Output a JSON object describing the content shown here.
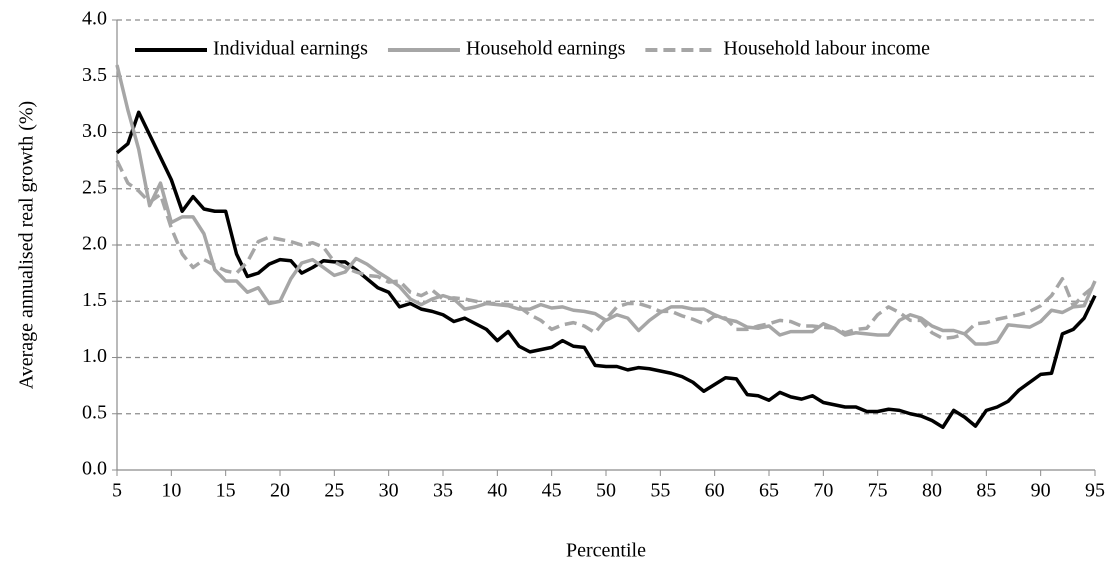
{
  "chart_data": {
    "type": "line",
    "xlabel": "Percentile",
    "ylabel": "Average annualised real growth (%)",
    "x": [
      5,
      6,
      7,
      8,
      9,
      10,
      11,
      12,
      13,
      14,
      15,
      16,
      17,
      18,
      19,
      20,
      21,
      22,
      23,
      24,
      25,
      26,
      27,
      28,
      29,
      30,
      31,
      32,
      33,
      34,
      35,
      36,
      37,
      38,
      39,
      40,
      41,
      42,
      43,
      44,
      45,
      46,
      47,
      48,
      49,
      50,
      51,
      52,
      53,
      54,
      55,
      56,
      57,
      58,
      59,
      60,
      61,
      62,
      63,
      64,
      65,
      66,
      67,
      68,
      69,
      70,
      71,
      72,
      73,
      74,
      75,
      76,
      77,
      78,
      79,
      80,
      81,
      82,
      83,
      84,
      85,
      86,
      87,
      88,
      89,
      90,
      91,
      92,
      93,
      94,
      95
    ],
    "series": [
      {
        "name": "Individual earnings",
        "color": "#000000",
        "dashed": false,
        "values": [
          2.82,
          2.9,
          3.18,
          2.98,
          2.78,
          2.58,
          2.3,
          2.43,
          2.32,
          2.3,
          2.3,
          1.92,
          1.72,
          1.75,
          1.83,
          1.87,
          1.86,
          1.75,
          1.8,
          1.86,
          1.85,
          1.85,
          1.78,
          1.7,
          1.62,
          1.58,
          1.45,
          1.48,
          1.43,
          1.41,
          1.38,
          1.32,
          1.35,
          1.3,
          1.25,
          1.15,
          1.23,
          1.1,
          1.05,
          1.07,
          1.09,
          1.15,
          1.1,
          1.09,
          0.93,
          0.92,
          0.92,
          0.89,
          0.91,
          0.9,
          0.88,
          0.86,
          0.83,
          0.78,
          0.7,
          0.76,
          0.82,
          0.81,
          0.67,
          0.66,
          0.62,
          0.69,
          0.65,
          0.63,
          0.66,
          0.6,
          0.58,
          0.56,
          0.56,
          0.52,
          0.52,
          0.54,
          0.53,
          0.5,
          0.48,
          0.44,
          0.38,
          0.53,
          0.47,
          0.39,
          0.53,
          0.56,
          0.61,
          0.71,
          0.78,
          0.85,
          0.86,
          1.21,
          1.25,
          1.35,
          1.55
        ]
      },
      {
        "name": "Household earnings",
        "color": "#a6a6a6",
        "dashed": false,
        "values": [
          3.6,
          3.2,
          2.85,
          2.35,
          2.55,
          2.2,
          2.25,
          2.25,
          2.1,
          1.78,
          1.68,
          1.68,
          1.58,
          1.62,
          1.48,
          1.5,
          1.7,
          1.84,
          1.87,
          1.8,
          1.73,
          1.76,
          1.88,
          1.83,
          1.76,
          1.7,
          1.63,
          1.52,
          1.47,
          1.52,
          1.55,
          1.52,
          1.43,
          1.45,
          1.48,
          1.47,
          1.46,
          1.43,
          1.43,
          1.47,
          1.44,
          1.45,
          1.42,
          1.41,
          1.39,
          1.33,
          1.38,
          1.35,
          1.24,
          1.33,
          1.4,
          1.45,
          1.45,
          1.43,
          1.43,
          1.38,
          1.34,
          1.32,
          1.27,
          1.26,
          1.28,
          1.2,
          1.23,
          1.23,
          1.23,
          1.3,
          1.26,
          1.2,
          1.22,
          1.21,
          1.2,
          1.2,
          1.33,
          1.38,
          1.35,
          1.28,
          1.24,
          1.24,
          1.21,
          1.12,
          1.12,
          1.14,
          1.29,
          1.28,
          1.27,
          1.32,
          1.42,
          1.4,
          1.45,
          1.46,
          1.68
        ]
      },
      {
        "name": "Household labour income",
        "color": "#a6a6a6",
        "dashed": true,
        "values": [
          2.75,
          2.55,
          2.48,
          2.38,
          2.45,
          2.15,
          1.92,
          1.8,
          1.87,
          1.82,
          1.77,
          1.75,
          1.85,
          2.03,
          2.07,
          2.05,
          2.03,
          2.0,
          2.02,
          1.98,
          1.85,
          1.8,
          1.76,
          1.73,
          1.72,
          1.67,
          1.68,
          1.58,
          1.55,
          1.6,
          1.52,
          1.53,
          1.52,
          1.5,
          1.48,
          1.48,
          1.47,
          1.45,
          1.38,
          1.33,
          1.25,
          1.29,
          1.31,
          1.28,
          1.22,
          1.34,
          1.45,
          1.48,
          1.48,
          1.45,
          1.41,
          1.41,
          1.37,
          1.34,
          1.3,
          1.37,
          1.35,
          1.25,
          1.25,
          1.28,
          1.3,
          1.33,
          1.32,
          1.28,
          1.28,
          1.27,
          1.26,
          1.22,
          1.25,
          1.26,
          1.38,
          1.45,
          1.4,
          1.33,
          1.33,
          1.22,
          1.17,
          1.18,
          1.21,
          1.3,
          1.31,
          1.34,
          1.36,
          1.38,
          1.41,
          1.46,
          1.55,
          1.7,
          1.46,
          1.56,
          1.64
        ]
      }
    ],
    "xlim": [
      5,
      95
    ],
    "xticks": [
      5,
      10,
      15,
      20,
      25,
      30,
      35,
      40,
      45,
      50,
      55,
      60,
      65,
      70,
      75,
      80,
      85,
      90,
      95
    ],
    "ylim": [
      0,
      4
    ],
    "yticks": [
      {
        "value": 0,
        "label": "0.0"
      },
      0.5,
      {
        "value": 1,
        "label": "1.0"
      },
      1.5,
      {
        "value": 2,
        "label": "2.0"
      },
      2.5,
      {
        "value": 3,
        "label": "3.0"
      },
      3.5,
      {
        "value": 4,
        "label": "4.0"
      }
    ],
    "grid": true,
    "legend": "top"
  }
}
